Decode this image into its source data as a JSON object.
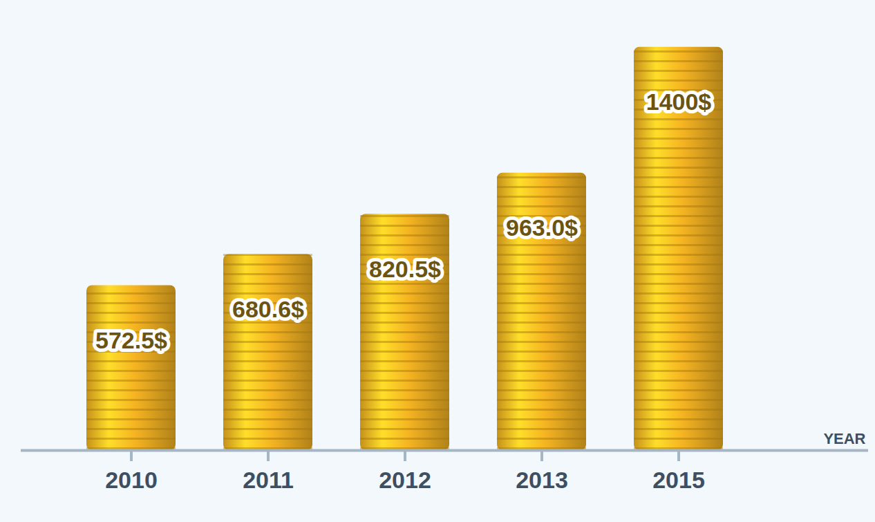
{
  "chart_data": {
    "type": "bar",
    "categories": [
      "2010",
      "2011",
      "2012",
      "2013",
      "2015"
    ],
    "values": [
      572.5,
      680.6,
      820.5,
      963.0,
      1400
    ],
    "value_labels": [
      "572.5$",
      "680.6$",
      "820.5$",
      "963.0$",
      "1400$"
    ],
    "data_labels": true,
    "x_label": "YEAR",
    "ylim": [
      0,
      1500
    ],
    "tick_labels": "x",
    "grid": false,
    "color": "#f4b322"
  }
}
